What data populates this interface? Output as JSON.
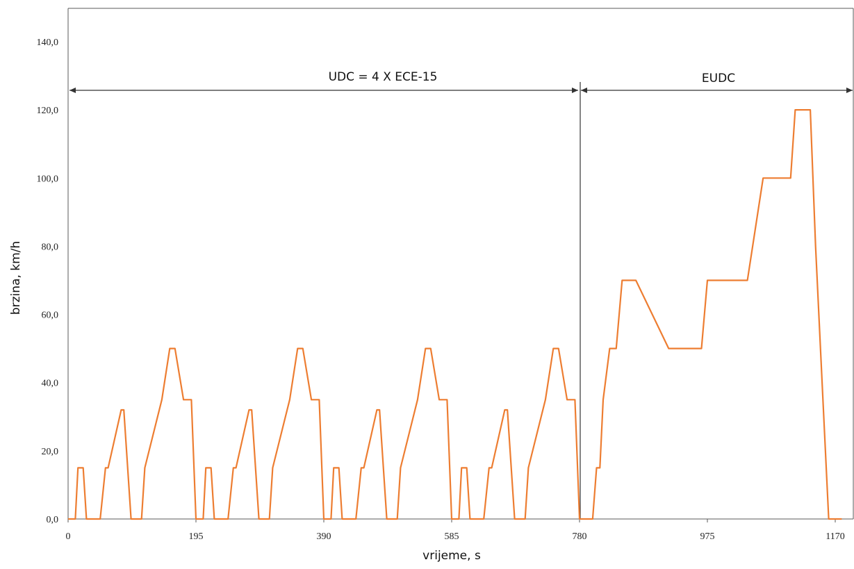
{
  "chart_data": {
    "type": "line",
    "title": "",
    "xlabel": "vrijeme, s",
    "ylabel": "brzina, km/h",
    "xlim": [
      0,
      1170
    ],
    "ylim": [
      0,
      140
    ],
    "x_ticks": [
      "0",
      "195",
      "390",
      "585",
      "780",
      "975",
      "1170"
    ],
    "y_ticks": [
      "0,0",
      "20,0",
      "40,0",
      "60,0",
      "80,0",
      "100,0",
      "120,0",
      "140,0"
    ],
    "grid": false,
    "legend": "none",
    "series_color": "#ed7d31",
    "series": [
      {
        "x": [
          0,
          11,
          15,
          23,
          28,
          49,
          57,
          61,
          81,
          85,
          96,
          112,
          117,
          143,
          155,
          163,
          176,
          188,
          195,
          206,
          210,
          218,
          223,
          244,
          252,
          256,
          276,
          280,
          291,
          307,
          312,
          338,
          350,
          358,
          371,
          383,
          390,
          401,
          405,
          413,
          418,
          439,
          447,
          451,
          471,
          475,
          486,
          502,
          507,
          533,
          545,
          553,
          566,
          578,
          585,
          596,
          600,
          608,
          613,
          634,
          642,
          646,
          666,
          670,
          681,
          697,
          702,
          728,
          740,
          748,
          761,
          773,
          780,
          800,
          806,
          811,
          816,
          826,
          836,
          845,
          859,
          866,
          916,
          923,
          966,
          975,
          1022,
          1036,
          1060,
          1102,
          1109,
          1132,
          1140,
          1150,
          1160,
          1174,
          1180
        ],
        "y": [
          0,
          0,
          15,
          15,
          0,
          0,
          15,
          15,
          32,
          32,
          0,
          0,
          15,
          35,
          50,
          50,
          35,
          35,
          0,
          0,
          15,
          15,
          0,
          0,
          15,
          15,
          32,
          32,
          0,
          0,
          15,
          35,
          50,
          50,
          35,
          35,
          0,
          0,
          15,
          15,
          0,
          0,
          15,
          15,
          32,
          32,
          0,
          0,
          15,
          35,
          50,
          50,
          35,
          35,
          0,
          0,
          15,
          15,
          0,
          0,
          15,
          15,
          32,
          32,
          0,
          0,
          15,
          35,
          50,
          50,
          35,
          35,
          0,
          0,
          15,
          15,
          35,
          50,
          50,
          70,
          70,
          70,
          50,
          50,
          50,
          70,
          70,
          70,
          100,
          100,
          120,
          120,
          80,
          40,
          0,
          0,
          0
        ]
      }
    ],
    "annotations": [
      {
        "text": "UDC = 4 X ECE-15",
        "x_start": 0,
        "x_end": 780
      },
      {
        "text": "EUDC",
        "x_start": 780,
        "x_end": 1180
      }
    ]
  }
}
